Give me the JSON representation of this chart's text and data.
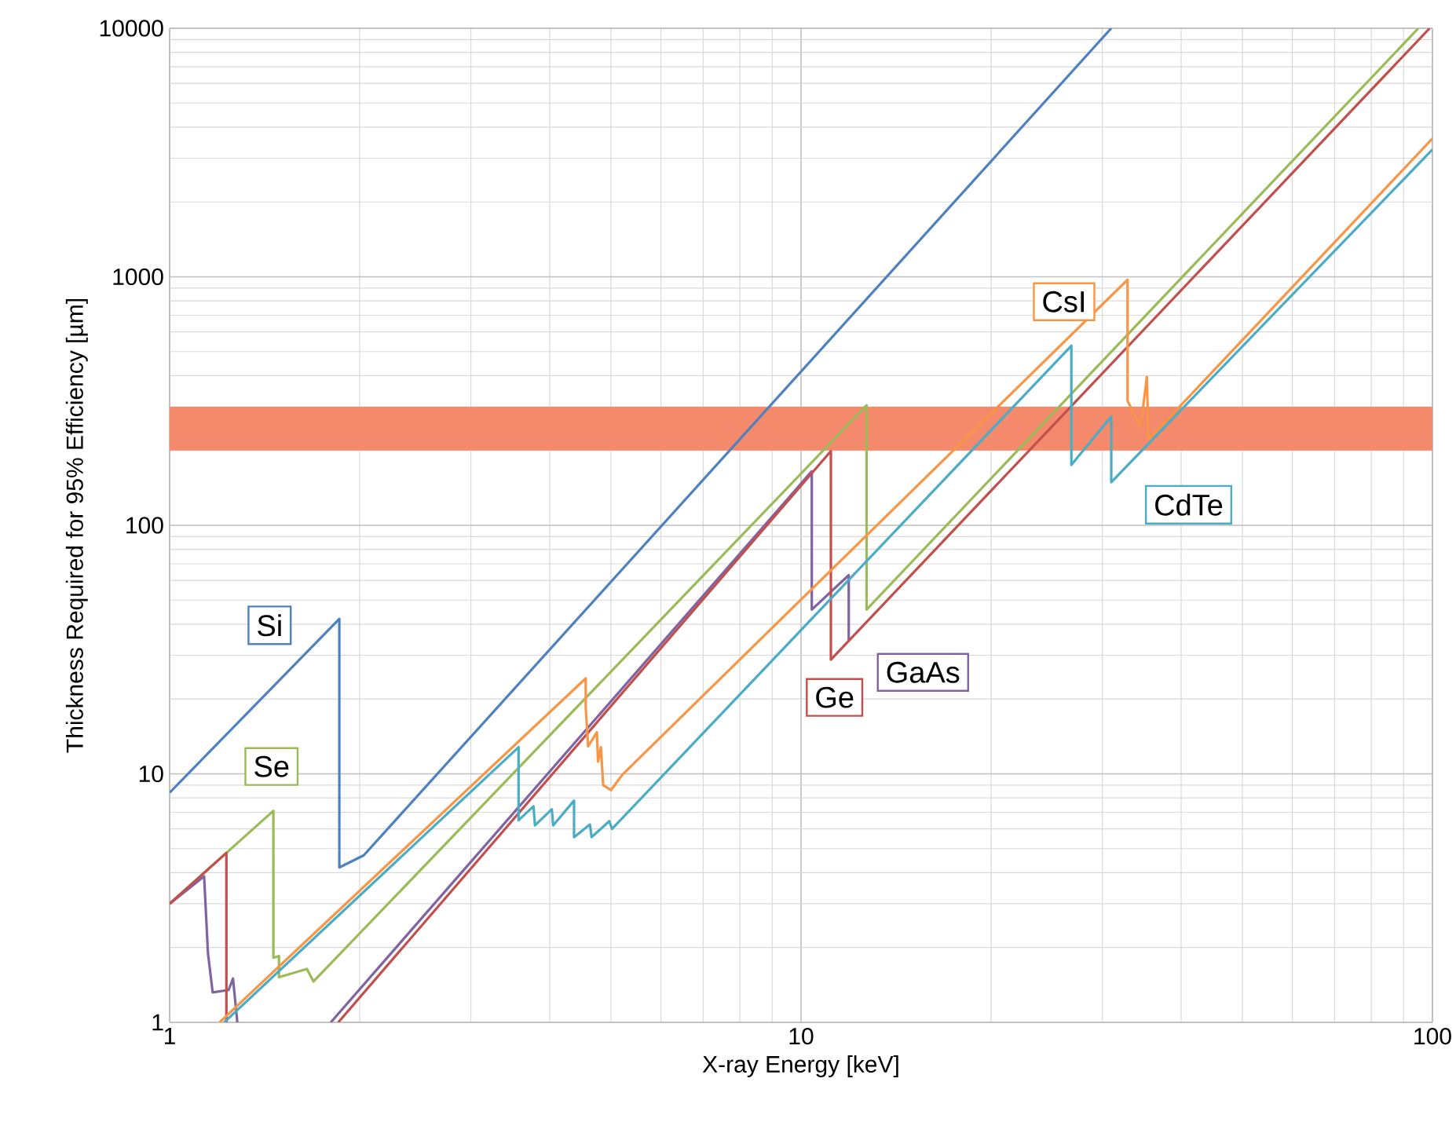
{
  "chart_data": {
    "type": "line",
    "xlabel": "X-ray Energy [keV]",
    "ylabel": "Thickness Required for 95% Efficiency [µm]",
    "log": "xy",
    "grid": true,
    "marker": "none",
    "line_style": "solid",
    "xlim": [
      1,
      100
    ],
    "ylim": [
      1,
      10000
    ],
    "xticks": [
      1,
      10,
      100
    ],
    "yticks": [
      1,
      10,
      100,
      1000,
      10000
    ],
    "bands": [
      {
        "axis": "y",
        "from": 200,
        "to": 300,
        "color": "#f4896b"
      }
    ],
    "series": [
      {
        "name": "Si",
        "color": "#4f81bd",
        "x": [
          1,
          1.857,
          1.857,
          2.03,
          31.0
        ],
        "values": [
          8.4,
          42,
          4.2,
          4.7,
          10000
        ]
      },
      {
        "name": "Se",
        "color": "#9bbb59",
        "x": [
          1,
          1.46,
          1.46,
          1.49,
          1.49,
          1.65,
          1.69,
          12.7,
          12.7,
          95
        ],
        "values": [
          3,
          7.1,
          1.82,
          1.85,
          1.52,
          1.64,
          1.46,
          304,
          45.8,
          10000
        ]
      },
      {
        "name": "GaAs",
        "color": "#8064a2",
        "x": [
          1,
          1.134,
          1.15,
          1.17,
          1.24,
          1.26,
          1.28,
          1.5,
          1.8,
          10.4,
          10.4,
          11.9,
          11.9
        ],
        "values": [
          3,
          3.87,
          1.9,
          1.32,
          1.35,
          1.5,
          1.0,
          null,
          1.0,
          165,
          45.8,
          63,
          34.3
        ]
      },
      {
        "name": "Ge",
        "color": "#c0504d",
        "x": [
          1,
          1.23,
          1.23,
          1.5,
          1.85,
          11.15,
          11.15,
          99
        ],
        "values": [
          3,
          4.81,
          1.0,
          null,
          1.0,
          199,
          28.8,
          10000
        ]
      },
      {
        "name": "CsI",
        "color": "#f79646",
        "x": [
          1.2,
          4.56,
          4.56,
          4.6,
          4.75,
          4.77,
          4.82,
          4.86,
          5.0,
          5.22,
          32.9,
          32.9,
          34.5,
          35.3,
          35.5,
          100
        ],
        "values": [
          1.0,
          24.2,
          18.6,
          12.9,
          14.7,
          11.2,
          12.8,
          9.0,
          8.6,
          9.96,
          973,
          317,
          248,
          395,
          221,
          3600
        ]
      },
      {
        "name": "CdTe",
        "color": "#4bacc6",
        "x": [
          1.22,
          3.57,
          3.57,
          3.77,
          3.79,
          4.03,
          4.05,
          4.37,
          4.37,
          4.63,
          4.66,
          4.97,
          5.02,
          26.8,
          26.8,
          31.0,
          31.0,
          100
        ],
        "values": [
          1.0,
          12.8,
          6.5,
          7.4,
          6.2,
          7.2,
          6.2,
          7.8,
          5.56,
          6.25,
          5.56,
          6.45,
          6.0,
          528,
          175,
          274,
          149,
          3250
        ]
      }
    ]
  }
}
